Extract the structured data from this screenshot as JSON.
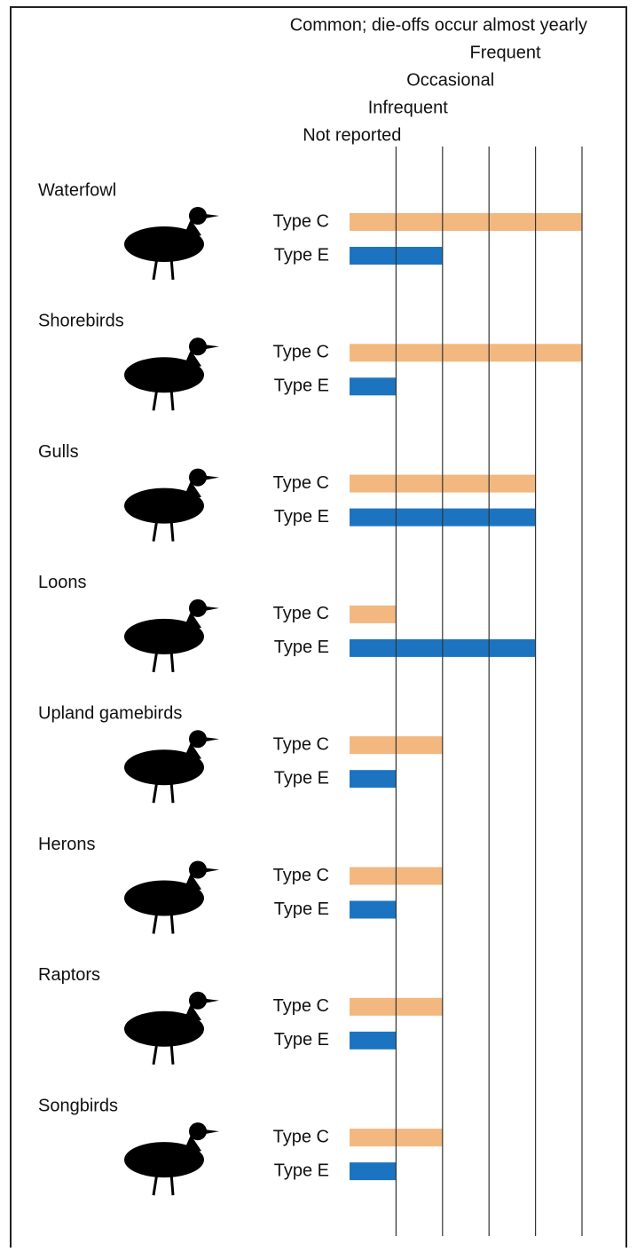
{
  "chart_data": {
    "type": "bar",
    "orientation": "horizontal",
    "categories": [
      "Waterfowl",
      "Shorebirds",
      "Gulls",
      "Loons",
      "Upland gamebirds",
      "Herons",
      "Raptors",
      "Songbirds"
    ],
    "series": [
      {
        "name": "Type C",
        "color": "#f2b880",
        "values": [
          5,
          5,
          4,
          1,
          2,
          2,
          2,
          2
        ]
      },
      {
        "name": "Type E",
        "color": "#1c74c0",
        "values": [
          2,
          1,
          4,
          4,
          1,
          1,
          1,
          1
        ]
      }
    ],
    "xlim": [
      0,
      5
    ],
    "xticks": [
      {
        "value": 1,
        "label": "Not reported"
      },
      {
        "value": 2,
        "label": "Infrequent"
      },
      {
        "value": 3,
        "label": "Occasional"
      },
      {
        "value": 4,
        "label": "Frequent"
      },
      {
        "value": 5,
        "label": "Common; die-offs occur almost yearly"
      }
    ],
    "grid": true
  }
}
